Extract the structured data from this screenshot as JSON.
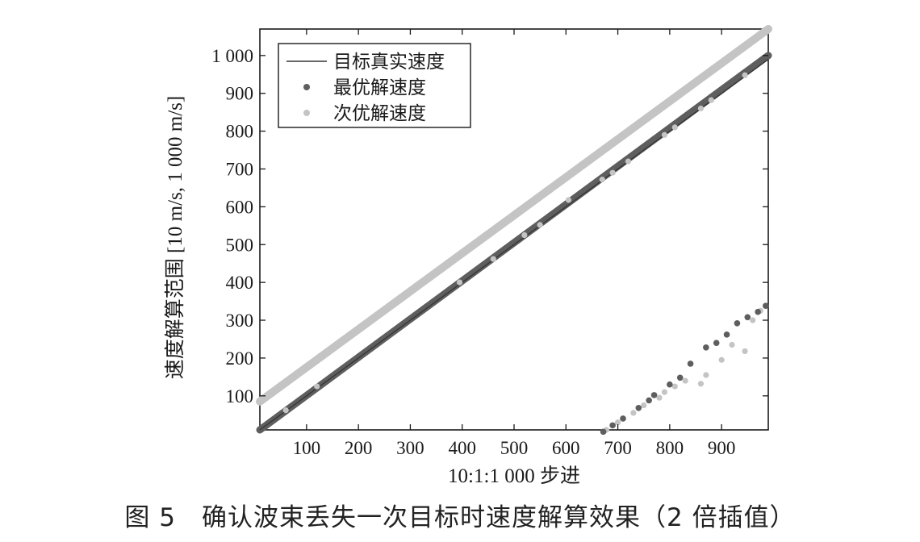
{
  "caption": "图 5　确认波束丢失一次目标时速度解算效果（2 倍插值）",
  "colors": {
    "truth": "#333333",
    "best": "#5e5e5e",
    "second": "#c4c4c4",
    "axis": "#1a1a1a"
  },
  "chart_data": {
    "type": "scatter",
    "xlabel": "10:1:1 000 步进",
    "ylabel": "速度解算范围 [10 m/s, 1 000 m/s]",
    "xlim": [
      10,
      990
    ],
    "ylim": [
      10,
      1070
    ],
    "xticks": [
      100,
      200,
      300,
      400,
      500,
      600,
      700,
      800,
      900
    ],
    "xtick_labels": [
      "100",
      "200",
      "300",
      "400",
      "500",
      "600",
      "700",
      "800",
      "900"
    ],
    "yticks": [
      100,
      200,
      300,
      400,
      500,
      600,
      700,
      800,
      900,
      1000
    ],
    "ytick_labels": [
      "100",
      "200",
      "300",
      "400",
      "500",
      "600",
      "700",
      "800",
      "900",
      "1 000"
    ],
    "legend_position": "top-left",
    "series": [
      {
        "name": "目标真实速度",
        "kind": "line",
        "x": [
          10,
          990
        ],
        "y": [
          10,
          990
        ]
      },
      {
        "name": "最优解速度",
        "kind": "dense-band",
        "segments": [
          {
            "x": [
              10,
              990
            ],
            "y": [
              10,
              1000
            ]
          }
        ],
        "points": [
          [
            672,
            5
          ],
          [
            690,
            22
          ],
          [
            710,
            40
          ],
          [
            740,
            68
          ],
          [
            760,
            88
          ],
          [
            770,
            102
          ],
          [
            800,
            130
          ],
          [
            820,
            148
          ],
          [
            840,
            185
          ],
          [
            870,
            228
          ],
          [
            890,
            240
          ],
          [
            910,
            262
          ],
          [
            930,
            292
          ],
          [
            950,
            308
          ],
          [
            970,
            322
          ],
          [
            985,
            338
          ]
        ]
      },
      {
        "name": "次优解速度",
        "kind": "dense-band",
        "segments": [
          {
            "x": [
              10,
              990
            ],
            "y": [
              85,
              1070
            ]
          }
        ],
        "points": [
          [
            60,
            62
          ],
          [
            120,
            125
          ],
          [
            395,
            400
          ],
          [
            460,
            462
          ],
          [
            520,
            525
          ],
          [
            550,
            552
          ],
          [
            605,
            618
          ],
          [
            670,
            672
          ],
          [
            690,
            690
          ],
          [
            720,
            720
          ],
          [
            790,
            790
          ],
          [
            810,
            810
          ],
          [
            860,
            860
          ],
          [
            880,
            882
          ],
          [
            945,
            948
          ],
          [
            678,
            10
          ],
          [
            700,
            30
          ],
          [
            730,
            55
          ],
          [
            750,
            75
          ],
          [
            780,
            95
          ],
          [
            790,
            110
          ],
          [
            810,
            125
          ],
          [
            830,
            140
          ],
          [
            860,
            132
          ],
          [
            870,
            155
          ],
          [
            900,
            195
          ],
          [
            920,
            235
          ],
          [
            945,
            218
          ],
          [
            960,
            300
          ],
          [
            975,
            325
          ]
        ]
      }
    ]
  }
}
